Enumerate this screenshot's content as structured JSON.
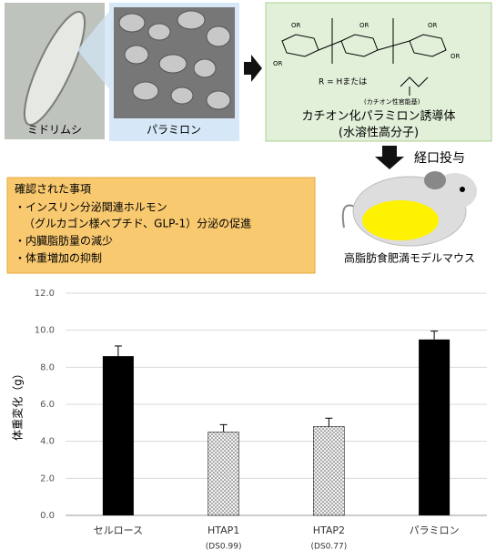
{
  "illustration": {
    "euglena_label": "ミドリムシ",
    "paramylon_label": "パラミロン",
    "structure_group": "OR",
    "structure_r": "R = Hまたは",
    "structure_cation_note": "(カチオン性官能基)",
    "derivative_title": "カチオン化パラミロン誘導体",
    "derivative_subtitle": "(水溶性高分子)",
    "oral_label": "経口投与",
    "mouse_label": "高脂肪食肥満モデルマウス"
  },
  "findings": {
    "heading": "確認された事項",
    "items": [
      "・インスリン分泌関連ホルモン",
      "（グルカゴン様ペプチド、GLP-1）分泌の促進",
      "・内臓脂肪量の減少",
      "・体重増加の抑制"
    ]
  },
  "chart_data": {
    "type": "bar",
    "ylabel": "体重変化（g）",
    "categories": [
      "セルロース",
      "HTAP1",
      "HTAP2",
      "パラミロン"
    ],
    "category_sublabels": [
      null,
      "(DS0.99)",
      "(DS0.77)",
      null
    ],
    "values": [
      8.6,
      4.5,
      4.8,
      9.5
    ],
    "errors": [
      0.55,
      0.4,
      0.45,
      0.45
    ],
    "bar_styles": [
      "solid",
      "dotted",
      "dotted",
      "solid"
    ],
    "color": "#000000",
    "ylim": [
      0,
      12
    ],
    "yticks": [
      {
        "value": 0,
        "label": "0.0"
      },
      {
        "value": 2,
        "label": "2.0"
      },
      {
        "value": 4,
        "label": "4.0"
      },
      {
        "value": 6,
        "label": "6.0"
      },
      {
        "value": 8,
        "label": "8.0"
      },
      {
        "value": 10,
        "label": "10.0"
      },
      {
        "value": 12,
        "label": "12.0"
      }
    ],
    "grid": true
  }
}
